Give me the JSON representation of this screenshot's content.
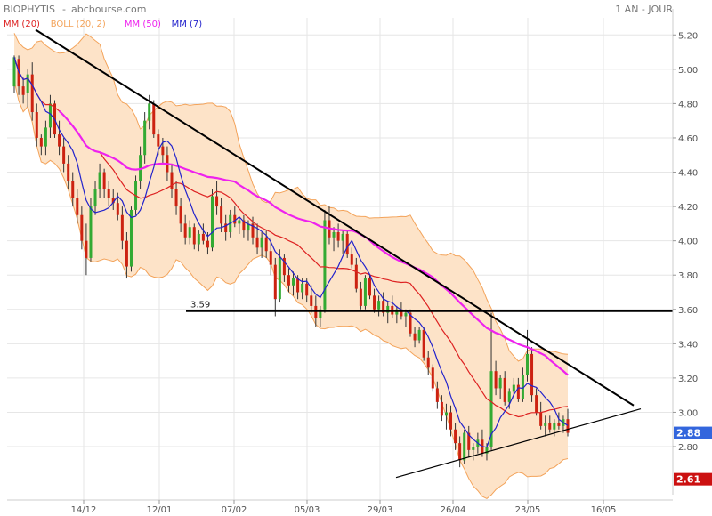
{
  "header": {
    "stock_name": "BIOPHYTIS",
    "separator": "-",
    "source": "abcbourse.com",
    "period": "1 AN - JOUR"
  },
  "legend": [
    {
      "label": "MM (20)",
      "color": "#dd2222"
    },
    {
      "label": "BOLL (20, 2)",
      "color": "#f3a35a"
    },
    {
      "label": "MM (50)",
      "color": "#ee22ee"
    },
    {
      "label": "MM (7)",
      "color": "#2222cc"
    }
  ],
  "colors": {
    "up": "#33aa33",
    "down": "#cc2211",
    "band_fill": "#fde3c8",
    "band_stroke": "#f3a35a",
    "grid": "#e6e6e6",
    "trendline": "#000000",
    "last_price_badge": "#3366dd",
    "low_badge": "#cc1111"
  },
  "chart_data": {
    "type": "candlestick",
    "title": "BIOPHYTIS",
    "ylim": [
      2.52,
      5.3
    ],
    "y_ticks": [
      "5.20",
      "5.00",
      "4.80",
      "4.60",
      "4.40",
      "4.20",
      "4.00",
      "3.80",
      "3.60",
      "3.40",
      "3.20",
      "3.00",
      "2.80"
    ],
    "x_labels": [
      "14/12",
      "12/01",
      "07/02",
      "05/03",
      "29/03",
      "26/04",
      "23/05",
      "16/05"
    ],
    "x_label_note": "date axis labels as printed",
    "current_price": "2.88",
    "low_marker": "2.61",
    "support_level_label": "3.59",
    "support_level": 3.59,
    "downtrend_line": {
      "from": [
        "start",
        5.23
      ],
      "to": [
        "end",
        3.04
      ]
    },
    "uptrend_line": {
      "from": [
        "26/04 - 30 days",
        2.62
      ],
      "to": [
        "end",
        3.02
      ]
    },
    "candles": [
      [
        4.9,
        5.08,
        4.86,
        5.07
      ],
      [
        5.06,
        5.08,
        4.85,
        4.9
      ],
      [
        4.9,
        4.95,
        4.8,
        4.85
      ],
      [
        4.86,
        5.0,
        4.78,
        4.97
      ],
      [
        4.97,
        5.04,
        4.7,
        4.75
      ],
      [
        4.75,
        4.8,
        4.55,
        4.6
      ],
      [
        4.6,
        4.62,
        4.5,
        4.55
      ],
      [
        4.55,
        4.7,
        4.5,
        4.66
      ],
      [
        4.66,
        4.85,
        4.6,
        4.8
      ],
      [
        4.8,
        4.82,
        4.6,
        4.62
      ],
      [
        4.62,
        4.7,
        4.5,
        4.55
      ],
      [
        4.55,
        4.6,
        4.4,
        4.45
      ],
      [
        4.45,
        4.5,
        4.3,
        4.35
      ],
      [
        4.35,
        4.4,
        4.2,
        4.25
      ],
      [
        4.25,
        4.3,
        4.1,
        4.15
      ],
      [
        4.15,
        4.2,
        3.95,
        4.0
      ],
      [
        4.0,
        4.1,
        3.8,
        3.9
      ],
      [
        3.9,
        4.25,
        3.88,
        4.2
      ],
      [
        4.2,
        4.35,
        4.15,
        4.3
      ],
      [
        4.3,
        4.45,
        4.25,
        4.4
      ],
      [
        4.4,
        4.42,
        4.25,
        4.3
      ],
      [
        4.3,
        4.35,
        4.2,
        4.25
      ],
      [
        4.25,
        4.3,
        4.18,
        4.22
      ],
      [
        4.22,
        4.28,
        4.12,
        4.15
      ],
      [
        4.15,
        4.2,
        3.95,
        4.0
      ],
      [
        4.0,
        4.05,
        3.78,
        3.85
      ],
      [
        3.85,
        4.2,
        3.82,
        4.18
      ],
      [
        4.18,
        4.38,
        4.15,
        4.35
      ],
      [
        4.35,
        4.55,
        4.3,
        4.5
      ],
      [
        4.5,
        4.75,
        4.45,
        4.7
      ],
      [
        4.7,
        4.85,
        4.65,
        4.8
      ],
      [
        4.8,
        4.82,
        4.6,
        4.62
      ],
      [
        4.62,
        4.65,
        4.5,
        4.55
      ],
      [
        4.55,
        4.6,
        4.45,
        4.5
      ],
      [
        4.5,
        4.55,
        4.35,
        4.4
      ],
      [
        4.4,
        4.45,
        4.25,
        4.3
      ],
      [
        4.3,
        4.35,
        4.15,
        4.2
      ],
      [
        4.2,
        4.25,
        4.05,
        4.1
      ],
      [
        4.1,
        4.15,
        3.98,
        4.02
      ],
      [
        4.02,
        4.12,
        3.98,
        4.08
      ],
      [
        4.08,
        4.1,
        3.95,
        3.98
      ],
      [
        3.98,
        4.06,
        3.94,
        4.04
      ],
      [
        4.04,
        4.1,
        3.98,
        4.0
      ],
      [
        4.0,
        4.05,
        3.92,
        3.96
      ],
      [
        3.96,
        4.3,
        3.94,
        4.26
      ],
      [
        4.26,
        4.35,
        4.15,
        4.2
      ],
      [
        4.2,
        4.25,
        4.05,
        4.1
      ],
      [
        4.1,
        4.15,
        4.0,
        4.05
      ],
      [
        4.05,
        4.18,
        4.02,
        4.15
      ],
      [
        4.15,
        4.2,
        4.08,
        4.1
      ],
      [
        4.1,
        4.14,
        4.04,
        4.12
      ],
      [
        4.12,
        4.15,
        4.02,
        4.06
      ],
      [
        4.06,
        4.12,
        4.0,
        4.1
      ],
      [
        4.1,
        4.14,
        3.98,
        4.02
      ],
      [
        4.02,
        4.1,
        3.92,
        3.96
      ],
      [
        3.96,
        4.05,
        3.9,
        4.02
      ],
      [
        4.02,
        4.06,
        3.9,
        3.94
      ],
      [
        3.94,
        4.02,
        3.8,
        3.86
      ],
      [
        3.86,
        3.9,
        3.56,
        3.66
      ],
      [
        3.66,
        3.95,
        3.64,
        3.9
      ],
      [
        3.9,
        3.92,
        3.76,
        3.8
      ],
      [
        3.8,
        3.84,
        3.7,
        3.74
      ],
      [
        3.74,
        3.82,
        3.68,
        3.78
      ],
      [
        3.78,
        3.8,
        3.66,
        3.7
      ],
      [
        3.7,
        3.78,
        3.66,
        3.75
      ],
      [
        3.75,
        3.78,
        3.64,
        3.68
      ],
      [
        3.68,
        3.74,
        3.58,
        3.62
      ],
      [
        3.62,
        3.68,
        3.5,
        3.55
      ],
      [
        3.55,
        3.62,
        3.5,
        3.6
      ],
      [
        3.6,
        4.18,
        3.58,
        4.12
      ],
      [
        4.12,
        4.2,
        3.98,
        4.02
      ],
      [
        4.02,
        4.08,
        3.94,
        4.05
      ],
      [
        4.05,
        4.1,
        3.96,
        4.0
      ],
      [
        4.0,
        4.06,
        3.92,
        4.04
      ],
      [
        4.04,
        4.06,
        3.9,
        3.92
      ],
      [
        3.92,
        3.96,
        3.84,
        3.86
      ],
      [
        3.86,
        3.9,
        3.7,
        3.72
      ],
      [
        3.72,
        3.76,
        3.6,
        3.62
      ],
      [
        3.62,
        3.8,
        3.6,
        3.78
      ],
      [
        3.78,
        3.8,
        3.66,
        3.68
      ],
      [
        3.68,
        3.72,
        3.58,
        3.6
      ],
      [
        3.6,
        3.68,
        3.56,
        3.65
      ],
      [
        3.65,
        3.7,
        3.56,
        3.58
      ],
      [
        3.58,
        3.64,
        3.52,
        3.62
      ],
      [
        3.62,
        3.68,
        3.55,
        3.57
      ],
      [
        3.57,
        3.62,
        3.52,
        3.6
      ],
      [
        3.6,
        3.64,
        3.54,
        3.56
      ],
      [
        3.56,
        3.6,
        3.5,
        3.58
      ],
      [
        3.58,
        3.6,
        3.44,
        3.46
      ],
      [
        3.46,
        3.5,
        3.38,
        3.42
      ],
      [
        3.42,
        3.5,
        3.4,
        3.48
      ],
      [
        3.48,
        3.5,
        3.3,
        3.32
      ],
      [
        3.32,
        3.36,
        3.22,
        3.26
      ],
      [
        3.26,
        3.28,
        3.12,
        3.14
      ],
      [
        3.14,
        3.18,
        3.02,
        3.06
      ],
      [
        3.06,
        3.1,
        2.95,
        2.98
      ],
      [
        2.98,
        3.05,
        2.9,
        3.0
      ],
      [
        3.0,
        3.04,
        2.86,
        2.9
      ],
      [
        2.9,
        2.94,
        2.78,
        2.82
      ],
      [
        2.82,
        2.86,
        2.68,
        2.72
      ],
      [
        2.72,
        2.9,
        2.7,
        2.88
      ],
      [
        2.88,
        2.92,
        2.74,
        2.78
      ],
      [
        2.78,
        2.82,
        2.72,
        2.8
      ],
      [
        2.8,
        2.88,
        2.76,
        2.84
      ],
      [
        2.84,
        2.9,
        2.74,
        2.76
      ],
      [
        2.76,
        2.82,
        2.72,
        2.8
      ],
      [
        2.8,
        3.58,
        2.78,
        3.24
      ],
      [
        3.24,
        3.3,
        3.1,
        3.14
      ],
      [
        3.14,
        3.22,
        3.08,
        3.2
      ],
      [
        3.2,
        3.24,
        3.04,
        3.06
      ],
      [
        3.06,
        3.14,
        3.02,
        3.12
      ],
      [
        3.12,
        3.2,
        3.08,
        3.16
      ],
      [
        3.16,
        3.2,
        3.06,
        3.08
      ],
      [
        3.08,
        3.26,
        3.06,
        3.22
      ],
      [
        3.22,
        3.48,
        3.18,
        3.34
      ],
      [
        3.34,
        3.38,
        3.06,
        3.1
      ],
      [
        3.1,
        3.14,
        2.98,
        3.0
      ],
      [
        3.0,
        3.06,
        2.9,
        2.92
      ],
      [
        2.92,
        2.98,
        2.86,
        2.94
      ],
      [
        2.94,
        2.98,
        2.88,
        2.9
      ],
      [
        2.9,
        2.96,
        2.86,
        2.94
      ],
      [
        2.94,
        3.0,
        2.9,
        2.92
      ],
      [
        2.92,
        2.98,
        2.88,
        2.96
      ],
      [
        2.96,
        3.02,
        2.86,
        2.88
      ]
    ]
  }
}
